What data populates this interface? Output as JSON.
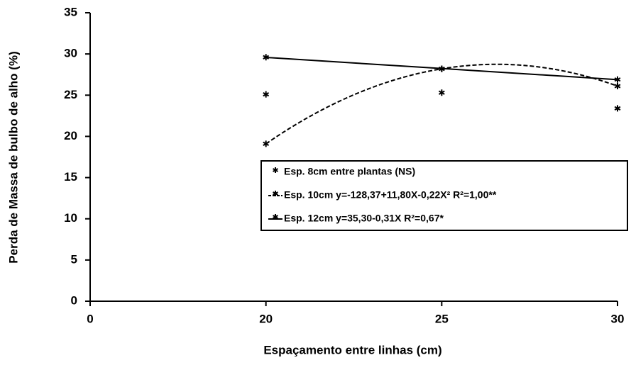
{
  "chart_data": {
    "type": "line",
    "x_label": "Espaçamento entre linhas (cm)",
    "y_label": "Perda de Massa de bulbo de alho (%)",
    "categories": [
      "0",
      "20",
      "25",
      "30"
    ],
    "ylim": [
      0,
      35
    ],
    "yticks": [
      0,
      5,
      10,
      15,
      20,
      25,
      30,
      35
    ],
    "series": [
      {
        "name": "Esp. 8cm entre plantas (NS)",
        "color": "#000000",
        "fit": "none",
        "values": [
          null,
          25.1,
          25.3,
          23.4
        ]
      },
      {
        "name": "Esp. 10cm  y=-128,37+11,80X-0,22X²  R²=1,00**",
        "color": "#000000",
        "fit": "quadratic",
        "dashed": true,
        "values": [
          null,
          19.1,
          28.2,
          26.1
        ]
      },
      {
        "name": "Esp. 12cm y=35,30-0,31X  R²=0,67*",
        "color": "#000000",
        "fit": "linear",
        "dashed": false,
        "values": [
          null,
          29.6,
          28.2,
          26.9
        ]
      }
    ]
  }
}
